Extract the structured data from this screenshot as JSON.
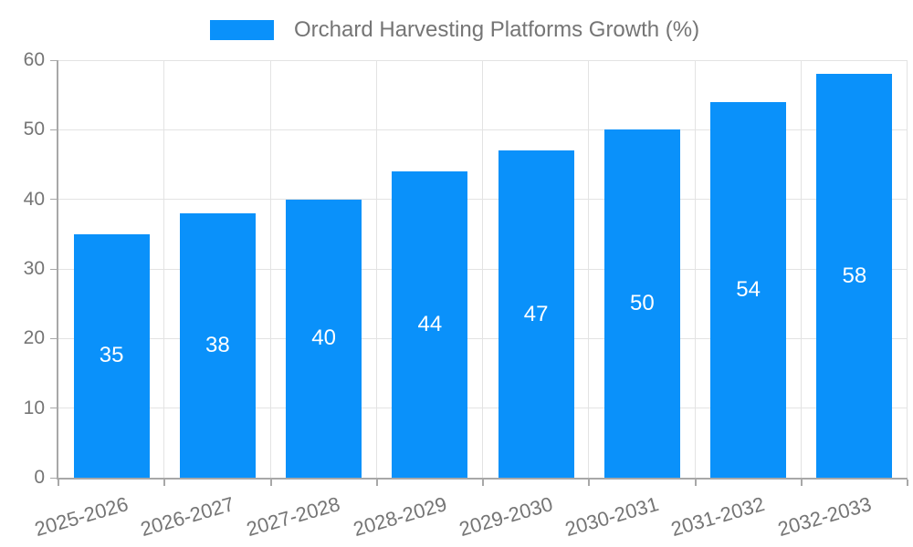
{
  "chart_data": {
    "type": "bar",
    "title": "Orchard Harvesting Platforms Growth (%)",
    "legend_position": "top",
    "categories": [
      "2025-2026",
      "2026-2027",
      "2027-2028",
      "2028-2029",
      "2029-2030",
      "2030-2031",
      "2031-2032",
      "2032-2033"
    ],
    "series": [
      {
        "name": "Orchard Harvesting Platforms Growth (%)",
        "values": [
          35,
          38,
          40,
          44,
          47,
          50,
          54,
          58
        ]
      }
    ],
    "xlabel": "",
    "ylabel": "",
    "ylim": [
      0,
      60
    ],
    "yticks": [
      0,
      10,
      20,
      30,
      40,
      50,
      60
    ],
    "grid": true,
    "bar_color": "#0A91FA",
    "value_label_color": "#ffffff",
    "axis_text_color": "#757575",
    "axis_line_color": "#a8a8a8",
    "grid_color": "#e3e3e3"
  }
}
